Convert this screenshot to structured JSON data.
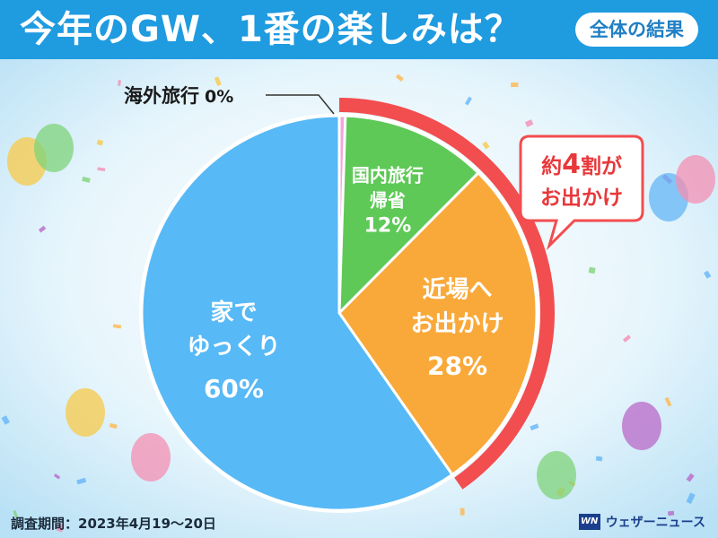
{
  "header": {
    "title": "今年のGW、1番の楽しみは？",
    "badge": "全体の結果"
  },
  "callout": {
    "line1_prefix": "約",
    "line1_num": "4",
    "line1_suffix": "割が",
    "line2": "お出かけ"
  },
  "footer": {
    "period": "調査期間：2023年4月19～20日",
    "logo_mark": "WN",
    "logo_text": "ウェザーニュース"
  },
  "colors": {
    "header": "#1f9be0",
    "accent_ring": "#f24d4f",
    "callout_text": "#e8383b"
  },
  "chart_data": {
    "type": "pie",
    "title": "今年のGW、1番の楽しみは？",
    "slices": [
      {
        "lines": [
          "海外旅行"
        ],
        "pct_label": "0%",
        "value": 0.5,
        "color": "#f3a6d8",
        "text_color": "#1a1a1a"
      },
      {
        "lines": [
          "国内旅行",
          "帰省"
        ],
        "pct_label": "12%",
        "value": 12,
        "color": "#5ec957",
        "text_color": "#ffffff"
      },
      {
        "lines": [
          "近場へ",
          "お出かけ"
        ],
        "pct_label": "28%",
        "value": 28,
        "color": "#f9a93a",
        "text_color": "#ffffff"
      },
      {
        "lines": [
          "家で",
          "ゆっくり"
        ],
        "pct_label": "60%",
        "value": 60,
        "color": "#57b9f6",
        "text_color": "#ffffff"
      }
    ],
    "highlight_group": [
      "海外旅行",
      "国内旅行",
      "近場へ"
    ],
    "legend": "none",
    "grid": false
  }
}
